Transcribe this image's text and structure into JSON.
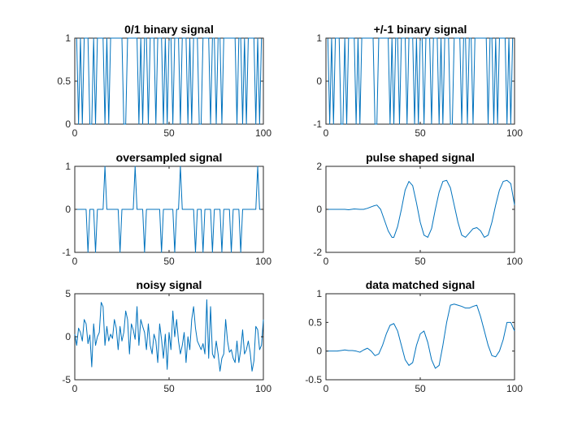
{
  "colors": {
    "line": "#0072BD",
    "axis": "#262626",
    "background": "#ffffff"
  },
  "chart_data": [
    {
      "type": "line",
      "title": "0/1 binary signal",
      "xlim": [
        0,
        100
      ],
      "ylim": [
        0,
        1
      ],
      "xticks": [
        0,
        50,
        100
      ],
      "yticks": [
        0,
        0.5,
        1
      ],
      "xtick_labels": [
        "0",
        "50",
        "100"
      ],
      "ytick_labels": [
        "0",
        "0.5",
        "1"
      ],
      "grid": false,
      "series": [
        {
          "x": [
            0,
            1,
            2,
            3,
            4,
            5,
            6,
            7,
            8,
            9,
            10,
            11,
            12,
            13,
            14,
            15,
            16,
            17,
            18,
            19,
            20,
            21,
            22,
            23,
            24,
            25,
            26,
            27,
            28,
            29,
            30,
            31,
            32,
            33,
            34,
            35,
            36,
            37,
            38,
            39,
            40,
            41,
            42,
            43,
            44,
            45,
            46,
            47,
            48,
            49,
            50,
            51,
            52,
            53,
            54,
            55,
            56,
            57,
            58,
            59,
            60,
            61,
            62,
            63,
            64,
            65,
            66,
            67,
            68,
            69,
            70,
            71,
            72,
            73,
            74,
            75,
            76,
            77,
            78,
            79,
            80,
            81,
            82,
            83,
            84,
            85,
            86,
            87,
            88,
            89,
            90,
            91,
            92,
            93,
            94,
            95,
            96,
            97,
            98,
            99,
            100
          ],
          "values": [
            1,
            1,
            0,
            1,
            0,
            1,
            1,
            1,
            0,
            0,
            1,
            0,
            1,
            1,
            1,
            1,
            0,
            1,
            0,
            1,
            1,
            1,
            1,
            1,
            1,
            1,
            0,
            0,
            1,
            1,
            1,
            1,
            1,
            1,
            0,
            1,
            0,
            1,
            1,
            0,
            1,
            1,
            1,
            0,
            1,
            1,
            1,
            0,
            1,
            0,
            1,
            1,
            0,
            1,
            1,
            1,
            0,
            1,
            1,
            1,
            0,
            1,
            0,
            1,
            1,
            1,
            0,
            0,
            1,
            1,
            1,
            1,
            0,
            1,
            1,
            0,
            1,
            1,
            0,
            1,
            1,
            1,
            1,
            1,
            1,
            1,
            0,
            1,
            1,
            0,
            1,
            0,
            1,
            1,
            1,
            1,
            0,
            1,
            0,
            1,
            1
          ]
        }
      ]
    },
    {
      "type": "line",
      "title": "+/-1 binary signal",
      "xlim": [
        0,
        100
      ],
      "ylim": [
        -1,
        1
      ],
      "xticks": [
        0,
        50,
        100
      ],
      "yticks": [
        -1,
        0,
        1
      ],
      "xtick_labels": [
        "0",
        "50",
        "100"
      ],
      "ytick_labels": [
        "-1",
        "0",
        "1"
      ],
      "grid": false,
      "series": [
        {
          "x": [
            0,
            1,
            2,
            3,
            4,
            5,
            6,
            7,
            8,
            9,
            10,
            11,
            12,
            13,
            14,
            15,
            16,
            17,
            18,
            19,
            20,
            21,
            22,
            23,
            24,
            25,
            26,
            27,
            28,
            29,
            30,
            31,
            32,
            33,
            34,
            35,
            36,
            37,
            38,
            39,
            40,
            41,
            42,
            43,
            44,
            45,
            46,
            47,
            48,
            49,
            50,
            51,
            52,
            53,
            54,
            55,
            56,
            57,
            58,
            59,
            60,
            61,
            62,
            63,
            64,
            65,
            66,
            67,
            68,
            69,
            70,
            71,
            72,
            73,
            74,
            75,
            76,
            77,
            78,
            79,
            80,
            81,
            82,
            83,
            84,
            85,
            86,
            87,
            88,
            89,
            90,
            91,
            92,
            93,
            94,
            95,
            96,
            97,
            98,
            99,
            100
          ],
          "values": [
            1,
            1,
            -1,
            1,
            -1,
            1,
            1,
            1,
            -1,
            -1,
            1,
            -1,
            1,
            1,
            1,
            1,
            -1,
            1,
            -1,
            1,
            1,
            1,
            1,
            1,
            1,
            1,
            -1,
            -1,
            1,
            1,
            1,
            1,
            1,
            1,
            -1,
            1,
            -1,
            1,
            1,
            -1,
            1,
            1,
            1,
            -1,
            1,
            1,
            1,
            -1,
            1,
            -1,
            1,
            1,
            -1,
            1,
            1,
            1,
            -1,
            1,
            1,
            1,
            -1,
            1,
            -1,
            1,
            1,
            1,
            -1,
            -1,
            1,
            1,
            1,
            1,
            -1,
            1,
            1,
            -1,
            1,
            1,
            -1,
            1,
            1,
            1,
            1,
            1,
            1,
            1,
            -1,
            1,
            1,
            -1,
            1,
            -1,
            1,
            1,
            1,
            1,
            -1,
            1,
            -1,
            1,
            1
          ]
        }
      ]
    },
    {
      "type": "line",
      "title": "oversampled signal",
      "xlim": [
        0,
        100
      ],
      "ylim": [
        -1,
        1
      ],
      "xticks": [
        0,
        50,
        100
      ],
      "yticks": [
        -1,
        0,
        1
      ],
      "xtick_labels": [
        "0",
        "50",
        "100"
      ],
      "ytick_labels": [
        "-1",
        "0",
        "1"
      ],
      "grid": false,
      "series": [
        {
          "x": [
            0,
            1,
            2,
            3,
            4,
            5,
            6,
            7,
            8,
            9,
            10,
            11,
            12,
            13,
            14,
            15,
            16,
            17,
            18,
            19,
            20,
            21,
            22,
            23,
            24,
            25,
            26,
            27,
            28,
            29,
            30,
            31,
            32,
            33,
            34,
            35,
            36,
            37,
            38,
            39,
            40,
            41,
            42,
            43,
            44,
            45,
            46,
            47,
            48,
            49,
            50,
            51,
            52,
            53,
            54,
            55,
            56,
            57,
            58,
            59,
            60,
            61,
            62,
            63,
            64,
            65,
            66,
            67,
            68,
            69,
            70,
            71,
            72,
            73,
            74,
            75,
            76,
            77,
            78,
            79,
            80,
            81,
            82,
            83,
            84,
            85,
            86,
            87,
            88,
            89,
            90,
            91,
            92,
            93,
            94,
            95,
            96,
            97,
            98,
            99,
            100
          ],
          "values": [
            0,
            0,
            0,
            0,
            0,
            0,
            0,
            -1,
            0,
            0,
            0,
            -1,
            0,
            0,
            0,
            0,
            1,
            0,
            0,
            0,
            0,
            0,
            0,
            0,
            -1,
            0,
            0,
            0,
            0,
            0,
            0,
            0,
            1,
            0,
            0,
            0,
            0,
            -1,
            0,
            0,
            0,
            0,
            0,
            0,
            0,
            0,
            -1,
            0,
            0,
            0,
            0,
            0,
            0,
            -1,
            0,
            0,
            1,
            0,
            0,
            0,
            0,
            0,
            0,
            0,
            -1,
            0,
            0,
            0,
            -1,
            0,
            0,
            0,
            0,
            -1,
            0,
            0,
            0,
            0,
            -1,
            0,
            0,
            0,
            0,
            -1,
            0,
            0,
            0,
            0,
            -1,
            0,
            0,
            0,
            0,
            0,
            0,
            0,
            0,
            1,
            0,
            0,
            0
          ]
        }
      ]
    },
    {
      "type": "line",
      "title": "pulse shaped signal",
      "xlim": [
        0,
        100
      ],
      "ylim": [
        -2,
        2
      ],
      "xticks": [
        0,
        50,
        100
      ],
      "yticks": [
        -2,
        0,
        2
      ],
      "xtick_labels": [
        "0",
        "50",
        "100"
      ],
      "ytick_labels": [
        "-2",
        "0",
        "2"
      ],
      "grid": false,
      "series": [
        {
          "x": [
            0,
            5,
            10,
            12,
            15,
            18,
            20,
            22,
            25,
            27,
            29,
            31,
            33,
            35,
            36,
            38,
            40,
            42,
            44,
            46,
            48,
            50,
            52,
            54,
            56,
            58,
            60,
            62,
            64,
            66,
            68,
            70,
            72,
            74,
            76,
            78,
            80,
            82,
            84,
            86,
            88,
            90,
            92,
            94,
            96,
            98,
            100
          ],
          "values": [
            0,
            0,
            0,
            -0.02,
            0.02,
            0,
            0,
            0.05,
            0.15,
            0.2,
            0,
            -0.5,
            -1,
            -1.3,
            -1.3,
            -0.8,
            0,
            0.9,
            1.3,
            1.1,
            0.3,
            -0.6,
            -1.2,
            -1.3,
            -0.9,
            0,
            0.8,
            1.3,
            1.35,
            1,
            0.2,
            -0.6,
            -1.2,
            -1.3,
            -1.1,
            -0.9,
            -0.85,
            -1,
            -1.3,
            -1.2,
            -0.6,
            0.2,
            0.9,
            1.3,
            1.35,
            1.2,
            0.2
          ]
        }
      ]
    },
    {
      "type": "line",
      "title": "noisy signal",
      "xlim": [
        0,
        100
      ],
      "ylim": [
        -5,
        5
      ],
      "xticks": [
        0,
        50,
        100
      ],
      "yticks": [
        -5,
        0,
        5
      ],
      "xtick_labels": [
        "0",
        "50",
        "100"
      ],
      "ytick_labels": [
        "-5",
        "0",
        "5"
      ],
      "grid": false,
      "series": [
        {
          "x": [
            0,
            1,
            2,
            3,
            4,
            5,
            6,
            7,
            8,
            9,
            10,
            11,
            12,
            13,
            14,
            15,
            16,
            17,
            18,
            19,
            20,
            21,
            22,
            23,
            24,
            25,
            26,
            27,
            28,
            29,
            30,
            31,
            32,
            33,
            34,
            35,
            36,
            37,
            38,
            39,
            40,
            41,
            42,
            43,
            44,
            45,
            46,
            47,
            48,
            49,
            50,
            51,
            52,
            53,
            54,
            55,
            56,
            57,
            58,
            59,
            60,
            61,
            62,
            63,
            64,
            65,
            66,
            67,
            68,
            69,
            70,
            71,
            72,
            73,
            74,
            75,
            76,
            77,
            78,
            79,
            80,
            81,
            82,
            83,
            84,
            85,
            86,
            87,
            88,
            89,
            90,
            91,
            92,
            93,
            94,
            95,
            96,
            97,
            98,
            99,
            100
          ],
          "values": [
            0.3,
            -1,
            1,
            0.5,
            -0.5,
            2,
            1.5,
            -0.8,
            0.2,
            -3.5,
            1.5,
            -1,
            0,
            0.5,
            4,
            3.5,
            -1,
            1.2,
            -0.5,
            0.3,
            -0.2,
            2,
            1,
            -1.5,
            1.2,
            -0.5,
            0.5,
            3,
            2,
            -2,
            1.5,
            0.8,
            -0.3,
            3.5,
            -1,
            2,
            1.2,
            0.5,
            -1.5,
            1.5,
            -1,
            -2,
            0.3,
            -0.5,
            -3,
            1.5,
            -0.3,
            -2.5,
            0.3,
            -3.8,
            0.5,
            -1.5,
            3,
            0,
            2,
            -0.5,
            -2,
            -1,
            0.5,
            -3,
            0,
            -1.5,
            2,
            3.5,
            1,
            -0.5,
            -1,
            -1.5,
            -0.8,
            -2,
            4.3,
            -2.5,
            3.5,
            -2,
            -2.5,
            -0.5,
            -2,
            -4,
            -2.5,
            -2,
            2,
            -0.5,
            -1.8,
            -1.5,
            -2.5,
            -3,
            -0.5,
            -3,
            -1.5,
            0.8,
            -2,
            -1.5,
            -0.5,
            -1.8,
            -4,
            -2.8,
            1.2,
            0.8,
            -1.5,
            -1,
            2
          ]
        }
      ]
    },
    {
      "type": "line",
      "title": "data matched signal",
      "xlim": [
        0,
        100
      ],
      "ylim": [
        -0.5,
        1
      ],
      "xticks": [
        0,
        50,
        100
      ],
      "yticks": [
        -0.5,
        0,
        0.5,
        1
      ],
      "xtick_labels": [
        "0",
        "50",
        "100"
      ],
      "ytick_labels": [
        "-0.5",
        "0",
        "0.5",
        "1"
      ],
      "grid": false,
      "series": [
        {
          "x": [
            0,
            3,
            6,
            8,
            10,
            12,
            14,
            16,
            18,
            20,
            22,
            24,
            26,
            28,
            30,
            32,
            34,
            36,
            38,
            40,
            42,
            44,
            46,
            48,
            50,
            52,
            54,
            56,
            58,
            60,
            62,
            64,
            66,
            68,
            70,
            72,
            74,
            76,
            78,
            80,
            82,
            84,
            86,
            88,
            90,
            92,
            94,
            96,
            98,
            100
          ],
          "values": [
            0,
            0,
            0,
            0.01,
            0.02,
            0.01,
            0.01,
            0,
            -0.02,
            0.02,
            0.05,
            0,
            -0.08,
            -0.05,
            0.1,
            0.3,
            0.45,
            0.48,
            0.35,
            0.1,
            -0.15,
            -0.25,
            -0.2,
            0.1,
            0.3,
            0.35,
            0.15,
            -0.15,
            -0.3,
            -0.25,
            0.1,
            0.5,
            0.8,
            0.82,
            0.8,
            0.78,
            0.75,
            0.75,
            0.78,
            0.8,
            0.6,
            0.35,
            0.1,
            -0.08,
            -0.1,
            0,
            0.2,
            0.5,
            0.5,
            0.35
          ]
        }
      ]
    }
  ]
}
